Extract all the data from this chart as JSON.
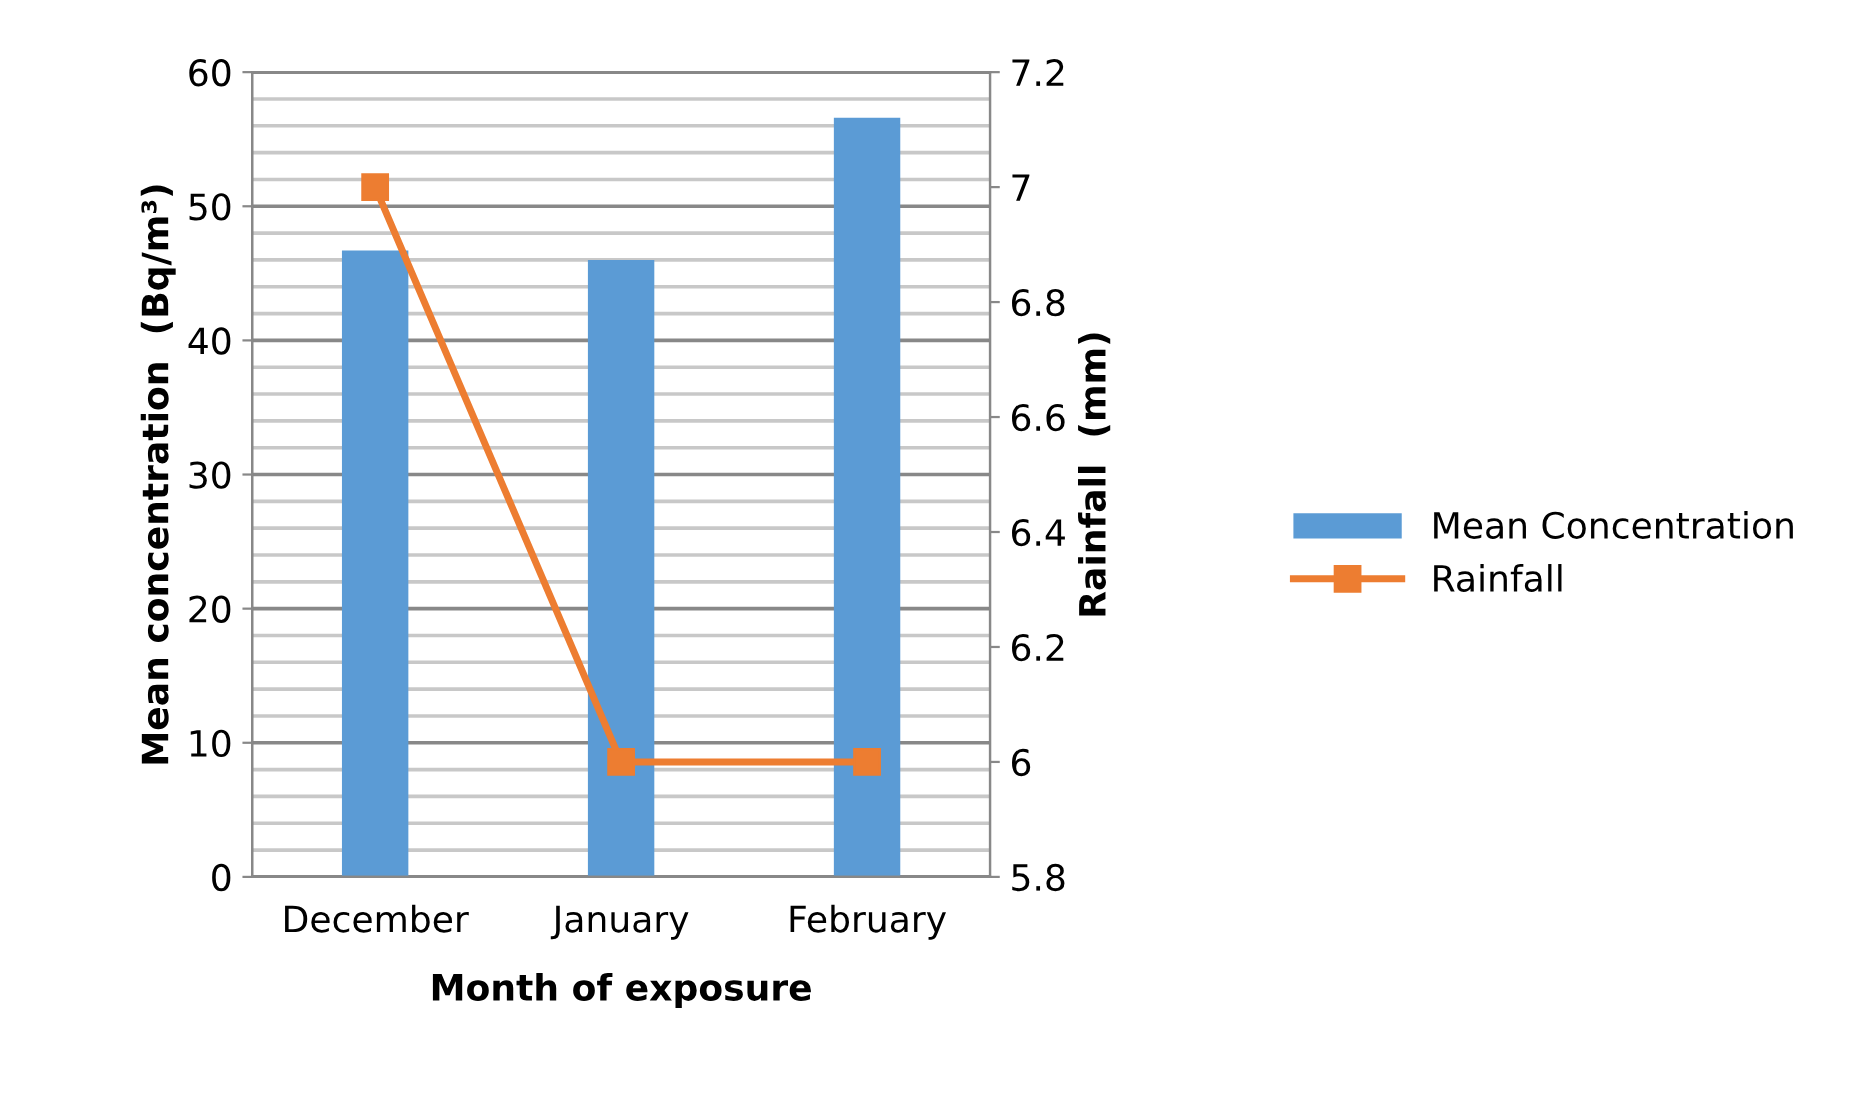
{
  "chart_data": {
    "type": "bar",
    "categories": [
      "December",
      "January",
      "February"
    ],
    "series": [
      {
        "name": "Mean Concentration",
        "color": "#5b9bd5",
        "values": [
          46.7,
          46.0,
          56.6
        ]
      },
      {
        "name": "Rainfall",
        "type": "line",
        "axis": "y2",
        "color": "#ed7d31",
        "values": [
          7,
          6,
          6
        ],
        "marker": "square"
      }
    ],
    "xlabel": "Month of exposure",
    "ylabel": "Mean concentration  (Bq/m³)",
    "y2label": "Rainfall  (mm)",
    "ylim": [
      0,
      60
    ],
    "yticks": [
      0,
      10,
      20,
      30,
      40,
      50,
      60
    ],
    "y2lim": [
      5.8,
      7.2
    ],
    "y2ticks": [
      5.8,
      6,
      6.2,
      6.4,
      6.6,
      6.8,
      7,
      7.2
    ],
    "grid": true,
    "legend": "right"
  }
}
